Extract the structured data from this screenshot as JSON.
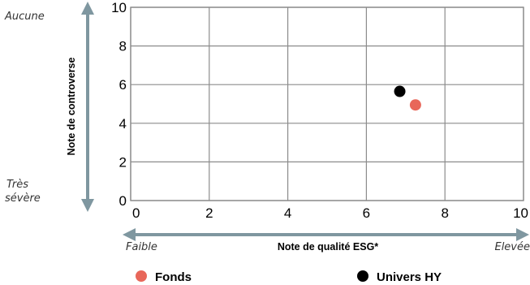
{
  "chart_data": {
    "type": "scatter",
    "xlabel": "Note de qualité ESG*",
    "ylabel": "Note de controverse",
    "xlim": [
      0,
      10
    ],
    "ylim": [
      0,
      10
    ],
    "x_ticks": [
      0,
      2,
      4,
      6,
      8,
      10
    ],
    "y_ticks": [
      0,
      2,
      4,
      6,
      8,
      10
    ],
    "grid": true,
    "x_axis_ends": {
      "left": "Faible",
      "right": "Elevée"
    },
    "y_axis_ends": {
      "top": "Aucune",
      "bottom_line1": "Très",
      "bottom_line2": "sévère"
    },
    "series": [
      {
        "name": "Fonds",
        "color": "#e8675a",
        "points": [
          {
            "x": 7.25,
            "y": 4.95
          }
        ]
      },
      {
        "name": "Univers HY",
        "color": "#000000",
        "points": [
          {
            "x": 6.85,
            "y": 5.65
          }
        ]
      }
    ],
    "legend_placement": "bottom"
  },
  "colors": {
    "grid": "#8c8c8c",
    "arrow": "#7f97a0"
  }
}
